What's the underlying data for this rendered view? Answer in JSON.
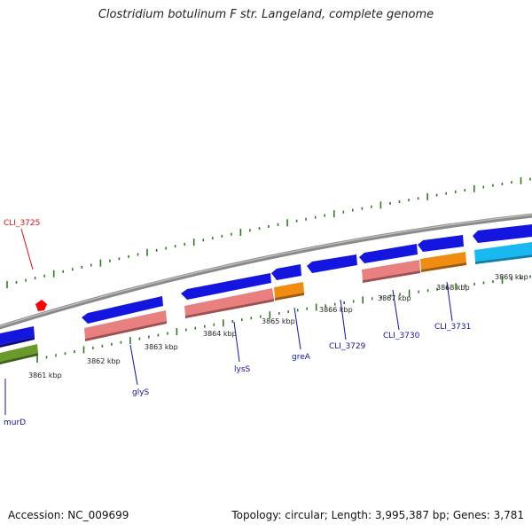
{
  "header": {
    "title": "Clostridium botulinum F str. Langeland, complete genome"
  },
  "footer": {
    "accession": "Accession: NC_009699",
    "summary": "Topology: circular; Length: 3,995,387 bp; Genes: 3,781"
  },
  "colors": {
    "backbone": "#8a8a8a",
    "cds": "#1515e0",
    "gene_salmon": "#e88080",
    "gene_orange": "#f08c10",
    "gene_green": "#6a9a2a",
    "gene_cyan": "#18b8f0",
    "ticks": "#2f7a1f",
    "label_blue": "#1010b0",
    "label_red": "#dd1010",
    "highlight": "#ff0000"
  },
  "scale_labels": [
    "3861 kbp",
    "3862 kbp",
    "3863 kbp",
    "3864 kbp",
    "3865 kbp",
    "3866 kbp",
    "3867 kbp",
    "3868 kbp",
    "3869 kbp"
  ],
  "gene_labels": [
    "CLI_3725",
    "murD",
    "glyS",
    "lysS",
    "greA",
    "CLI_3729",
    "CLI_3730",
    "CLI_3731"
  ]
}
